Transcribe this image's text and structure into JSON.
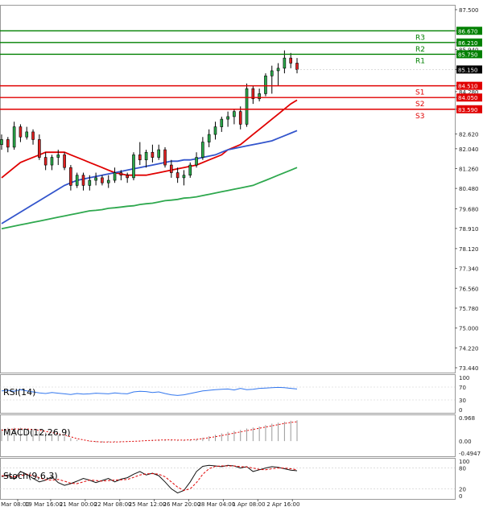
{
  "chart_data": {
    "type": "candlestick",
    "instrument_note": "",
    "price_axis": {
      "min": 73.44,
      "max": 87.5,
      "ticks": [
        "87.500",
        "86.670",
        "86.210",
        "85.940",
        "85.750",
        "85.150",
        "84.510",
        "84.280",
        "84.050",
        "83.590",
        "82.620",
        "82.040",
        "81.260",
        "80.480",
        "79.680",
        "78.910",
        "78.120",
        "77.340",
        "76.560",
        "75.780",
        "75.000",
        "74.220",
        "73.440"
      ],
      "current_price": "85.150"
    },
    "levels": [
      {
        "name": "R3",
        "value": 86.67,
        "label": "86.670",
        "color": "#008000"
      },
      {
        "name": "R2",
        "value": 86.21,
        "label": "86.210",
        "color": "#008000"
      },
      {
        "name": "R1",
        "value": 85.75,
        "label": "85.750",
        "color": "#008000"
      },
      {
        "name": "S1",
        "value": 84.51,
        "label": "84.510",
        "color": "#e00000"
      },
      {
        "name": "S2",
        "value": 84.05,
        "label": "84.050",
        "color": "#e00000"
      },
      {
        "name": "S3",
        "value": 83.59,
        "label": "83.590",
        "color": "#e00000"
      }
    ],
    "time_labels": [
      "18 Mar 08:00",
      "19 Mar 16:00",
      "21 Mar 00:00",
      "22 Mar 08:00",
      "25 Mar 12:00",
      "26 Mar 20:00",
      "28 Mar 04:00",
      "1 Apr 08:00",
      "2 Apr 16:00"
    ],
    "candles": [
      [
        82.2,
        82.6,
        82.0,
        82.4
      ],
      [
        82.4,
        82.5,
        81.9,
        82.1
      ],
      [
        82.1,
        83.1,
        82.0,
        82.9
      ],
      [
        82.9,
        83.0,
        82.3,
        82.5
      ],
      [
        82.5,
        82.9,
        82.4,
        82.7
      ],
      [
        82.7,
        82.8,
        82.2,
        82.4
      ],
      [
        82.4,
        82.6,
        81.6,
        81.7
      ],
      [
        81.7,
        81.9,
        81.2,
        81.4
      ],
      [
        81.4,
        81.8,
        81.2,
        81.7
      ],
      [
        81.7,
        82.0,
        81.4,
        81.8
      ],
      [
        81.8,
        81.9,
        81.2,
        81.3
      ],
      [
        81.3,
        81.4,
        80.4,
        80.6
      ],
      [
        80.6,
        81.1,
        80.5,
        81.0
      ],
      [
        81.0,
        81.1,
        80.4,
        80.6
      ],
      [
        80.6,
        81.0,
        80.4,
        80.8
      ],
      [
        80.8,
        81.1,
        80.6,
        80.9
      ],
      [
        80.9,
        81.0,
        80.6,
        80.7
      ],
      [
        80.7,
        81.0,
        80.5,
        80.8
      ],
      [
        80.8,
        81.3,
        80.7,
        81.1
      ],
      [
        81.1,
        81.2,
        80.8,
        81.0
      ],
      [
        81.0,
        81.1,
        80.7,
        80.9
      ],
      [
        80.9,
        81.9,
        80.8,
        81.8
      ],
      [
        81.8,
        82.3,
        81.4,
        81.6
      ],
      [
        81.6,
        82.0,
        81.3,
        81.9
      ],
      [
        81.9,
        82.2,
        81.5,
        81.7
      ],
      [
        81.7,
        82.2,
        81.6,
        82.0
      ],
      [
        82.0,
        82.1,
        81.3,
        81.4
      ],
      [
        81.4,
        81.6,
        80.9,
        81.1
      ],
      [
        81.1,
        81.3,
        80.7,
        80.9
      ],
      [
        80.9,
        81.2,
        80.6,
        81.0
      ],
      [
        81.0,
        81.5,
        80.9,
        81.4
      ],
      [
        81.4,
        81.9,
        81.3,
        81.7
      ],
      [
        81.7,
        82.5,
        81.6,
        82.3
      ],
      [
        82.3,
        82.8,
        82.1,
        82.6
      ],
      [
        82.6,
        83.1,
        82.4,
        82.9
      ],
      [
        82.9,
        83.3,
        82.7,
        83.2
      ],
      [
        83.2,
        83.5,
        82.9,
        83.3
      ],
      [
        83.3,
        83.6,
        83.0,
        83.5
      ],
      [
        83.5,
        83.7,
        82.8,
        83.0
      ],
      [
        83.0,
        84.6,
        82.9,
        84.4
      ],
      [
        84.4,
        84.5,
        83.8,
        84.0
      ],
      [
        84.0,
        84.4,
        83.9,
        84.2
      ],
      [
        84.2,
        85.0,
        84.1,
        84.9
      ],
      [
        84.9,
        85.3,
        84.2,
        85.1
      ],
      [
        85.1,
        85.4,
        84.5,
        85.2
      ],
      [
        85.2,
        85.9,
        85.0,
        85.6
      ],
      [
        85.6,
        85.8,
        85.2,
        85.4
      ],
      [
        85.4,
        85.6,
        85.0,
        85.15
      ]
    ],
    "ma_series": [
      {
        "name": "MA fast",
        "color": "#e00000",
        "values": [
          80.9,
          81.1,
          81.3,
          81.5,
          81.6,
          81.7,
          81.8,
          81.9,
          81.9,
          81.9,
          81.9,
          81.8,
          81.7,
          81.6,
          81.5,
          81.4,
          81.3,
          81.2,
          81.1,
          81.05,
          81.0,
          81.0,
          81.0,
          81.0,
          81.05,
          81.1,
          81.15,
          81.2,
          81.25,
          81.3,
          81.35,
          81.4,
          81.5,
          81.6,
          81.7,
          81.8,
          82.0,
          82.1,
          82.2,
          82.4,
          82.6,
          82.8,
          83.0,
          83.2,
          83.4,
          83.6,
          83.8,
          83.95
        ]
      },
      {
        "name": "MA medium",
        "color": "#3355cc",
        "values": [
          79.1,
          79.25,
          79.4,
          79.55,
          79.7,
          79.85,
          80.0,
          80.15,
          80.3,
          80.45,
          80.6,
          80.7,
          80.8,
          80.85,
          80.9,
          80.95,
          81.0,
          81.05,
          81.1,
          81.15,
          81.2,
          81.25,
          81.3,
          81.35,
          81.4,
          81.45,
          81.5,
          81.55,
          81.55,
          81.6,
          81.6,
          81.65,
          81.7,
          81.75,
          81.8,
          81.9,
          82.0,
          82.05,
          82.1,
          82.15,
          82.2,
          82.25,
          82.3,
          82.35,
          82.45,
          82.55,
          82.65,
          82.75
        ]
      },
      {
        "name": "MA slow",
        "color": "#2ea84e",
        "values": [
          78.9,
          78.95,
          79.0,
          79.05,
          79.1,
          79.15,
          79.2,
          79.25,
          79.3,
          79.35,
          79.4,
          79.45,
          79.5,
          79.55,
          79.6,
          79.62,
          79.65,
          79.7,
          79.72,
          79.75,
          79.78,
          79.8,
          79.85,
          79.88,
          79.9,
          79.95,
          80.0,
          80.02,
          80.05,
          80.1,
          80.12,
          80.15,
          80.2,
          80.25,
          80.3,
          80.35,
          80.4,
          80.45,
          80.5,
          80.55,
          80.6,
          80.7,
          80.8,
          80.9,
          81.0,
          81.1,
          81.2,
          81.3
        ]
      }
    ],
    "indicators": [
      {
        "name": "RSI(14)",
        "type": "line",
        "ticks": [
          "100",
          "70",
          "30",
          "0"
        ],
        "range": [
          0,
          100
        ],
        "series": [
          {
            "color": "#3377ee",
            "values": [
              58,
              60,
              57,
              62,
              58,
              55,
              52,
              50,
              53,
              51,
              49,
              47,
              50,
              48,
              49,
              51,
              50,
              49,
              52,
              50,
              49,
              55,
              57,
              56,
              53,
              55,
              50,
              46,
              44,
              46,
              50,
              54,
              58,
              60,
              62,
              63,
              64,
              61,
              66,
              62,
              63,
              66,
              67,
              68,
              69,
              68,
              66,
              64
            ]
          }
        ]
      },
      {
        "name": "MACD(12,26,9)",
        "type": "histogram",
        "ticks": [
          "0.968",
          "0.00",
          "-0.4947"
        ],
        "range": [
          -0.4947,
          0.968
        ],
        "histogram_color": "#999999",
        "histogram": [
          0.5,
          0.55,
          0.55,
          0.55,
          0.5,
          0.45,
          0.4,
          0.35,
          0.3,
          0.25,
          0.2,
          0.12,
          0.05,
          0.0,
          -0.02,
          -0.05,
          -0.06,
          -0.04,
          -0.03,
          -0.02,
          -0.02,
          0.0,
          0.02,
          0.04,
          0.05,
          0.06,
          0.05,
          0.03,
          0.02,
          0.03,
          0.05,
          0.08,
          0.14,
          0.2,
          0.26,
          0.32,
          0.38,
          0.42,
          0.46,
          0.52,
          0.56,
          0.6,
          0.66,
          0.72,
          0.76,
          0.8,
          0.84,
          0.86
        ],
        "signal_color": "#e00000",
        "signal": [
          0.45,
          0.48,
          0.5,
          0.5,
          0.5,
          0.48,
          0.45,
          0.4,
          0.35,
          0.3,
          0.25,
          0.18,
          0.1,
          0.05,
          0.0,
          -0.02,
          -0.04,
          -0.04,
          -0.04,
          -0.03,
          -0.02,
          -0.01,
          0.0,
          0.02,
          0.03,
          0.04,
          0.05,
          0.05,
          0.04,
          0.04,
          0.05,
          0.07,
          0.1,
          0.14,
          0.18,
          0.23,
          0.28,
          0.33,
          0.38,
          0.43,
          0.48,
          0.53,
          0.58,
          0.63,
          0.68,
          0.73,
          0.77,
          0.8
        ]
      },
      {
        "name": "Stoch(9,6,3)",
        "type": "line",
        "ticks": [
          "100",
          "80",
          "20",
          "0"
        ],
        "range": [
          0,
          100
        ],
        "series": [
          {
            "color": "#111111",
            "values": [
              55,
              60,
              48,
              70,
              62,
              50,
              40,
              45,
              55,
              38,
              30,
              35,
              42,
              50,
              45,
              38,
              44,
              50,
              40,
              48,
              52,
              62,
              70,
              60,
              65,
              58,
              40,
              20,
              8,
              15,
              40,
              70,
              85,
              88,
              86,
              84,
              88,
              86,
              80,
              84,
              70,
              75,
              80,
              84,
              82,
              78,
              74,
              72
            ]
          },
          {
            "color": "#e00000",
            "dash": "3,2",
            "values": [
              58,
              56,
              55,
              58,
              62,
              58,
              52,
              46,
              45,
              47,
              42,
              36,
              35,
              40,
              45,
              44,
              42,
              44,
              45,
              46,
              47,
              53,
              60,
              63,
              64,
              62,
              55,
              40,
              25,
              15,
              20,
              38,
              62,
              78,
              85,
              86,
              86,
              86,
              84,
              83,
              80,
              76,
              75,
              78,
              80,
              80,
              78,
              75
            ]
          }
        ]
      }
    ]
  }
}
